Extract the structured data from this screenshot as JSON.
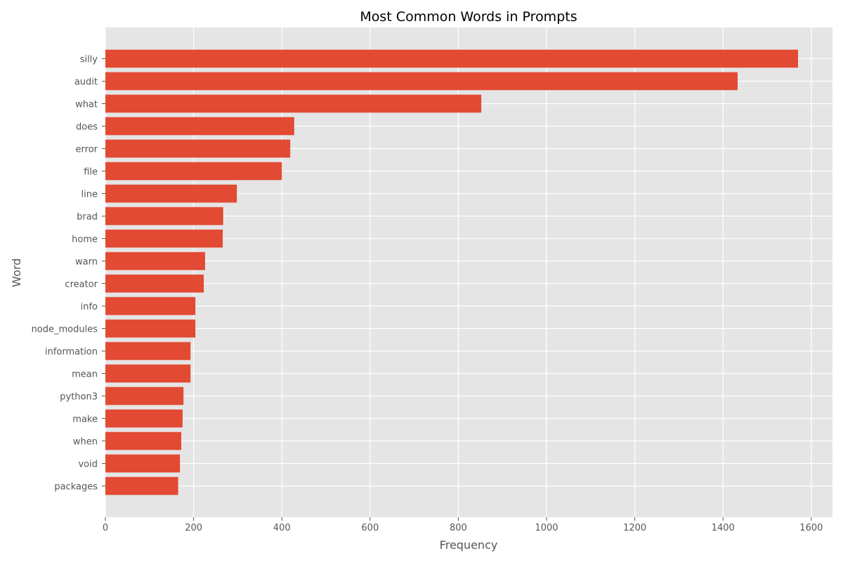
{
  "chart_data": {
    "type": "bar",
    "orientation": "horizontal",
    "title": "Most Common Words in Prompts",
    "xlabel": "Frequency",
    "ylabel": "Word",
    "xlim": [
      0,
      1648
    ],
    "xticks": [
      0,
      200,
      400,
      600,
      800,
      1000,
      1200,
      1400,
      1600
    ],
    "grid": true,
    "style": "ggplot",
    "bar_color": "#E24A33",
    "background_color": "#E5E5E5",
    "categories": [
      "silly",
      "audit",
      "what",
      "does",
      "error",
      "file",
      "line",
      "brad",
      "home",
      "warn",
      "creator",
      "info",
      "node_modules",
      "information",
      "mean",
      "python3",
      "make",
      "when",
      "void",
      "packages"
    ],
    "values": [
      1570,
      1433,
      852,
      428,
      419,
      400,
      298,
      267,
      266,
      226,
      223,
      204,
      204,
      193,
      193,
      177,
      175,
      172,
      169,
      165
    ]
  }
}
